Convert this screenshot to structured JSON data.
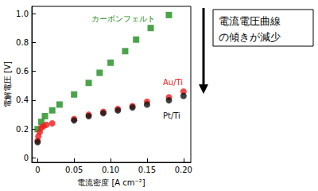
{
  "chart_data": {
    "type": "scatter",
    "x_label": "電流密度 [A cm⁻²]",
    "y_label": "電解電圧 [V]",
    "annotation": "電流電圧曲線\nの傾きが減少",
    "xlim": [
      -0.008,
      0.21
    ],
    "xticks": [
      0,
      0.05,
      {
        "value": 0.1,
        "label": "0.10"
      },
      0.15,
      {
        "value": 0.2,
        "label": "0.20"
      }
    ],
    "ylim": [
      -0.03,
      1.05
    ],
    "yticks": [
      0,
      0.2,
      0.4,
      0.6,
      0.8,
      {
        "value": 1,
        "label": "1.0"
      }
    ],
    "grid": false,
    "series": [
      {
        "name": "カーボンフェルト",
        "color": "#1e8c1e",
        "marker": "square",
        "x": [
          0,
          0.005,
          0.01,
          0.02,
          0.03,
          0.05,
          0.07,
          0.085,
          0.1,
          0.12,
          0.135,
          0.155,
          0.18
        ],
        "values": [
          0.2,
          0.25,
          0.29,
          0.33,
          0.37,
          0.44,
          0.52,
          0.59,
          0.66,
          0.74,
          0.82,
          0.9,
          0.99
        ]
      },
      {
        "name": "Au/Ti",
        "color": "#ee1c1c",
        "marker": "circle",
        "x": [
          0,
          0.001,
          0.003,
          0.005,
          0.008,
          0.012,
          0.02,
          0.05,
          0.07,
          0.09,
          0.11,
          0.13,
          0.15,
          0.18,
          0.2
        ],
        "values": [
          0.12,
          0.15,
          0.18,
          0.21,
          0.22,
          0.23,
          0.24,
          0.27,
          0.3,
          0.32,
          0.34,
          0.36,
          0.39,
          0.42,
          0.46
        ]
      },
      {
        "name": "Pt/Ti",
        "color": "#111111",
        "marker": "circle",
        "x": [
          0,
          0.05,
          0.07,
          0.09,
          0.11,
          0.13,
          0.15,
          0.18,
          0.2
        ],
        "values": [
          0.11,
          0.26,
          0.29,
          0.31,
          0.33,
          0.35,
          0.37,
          0.4,
          0.43
        ]
      }
    ]
  }
}
